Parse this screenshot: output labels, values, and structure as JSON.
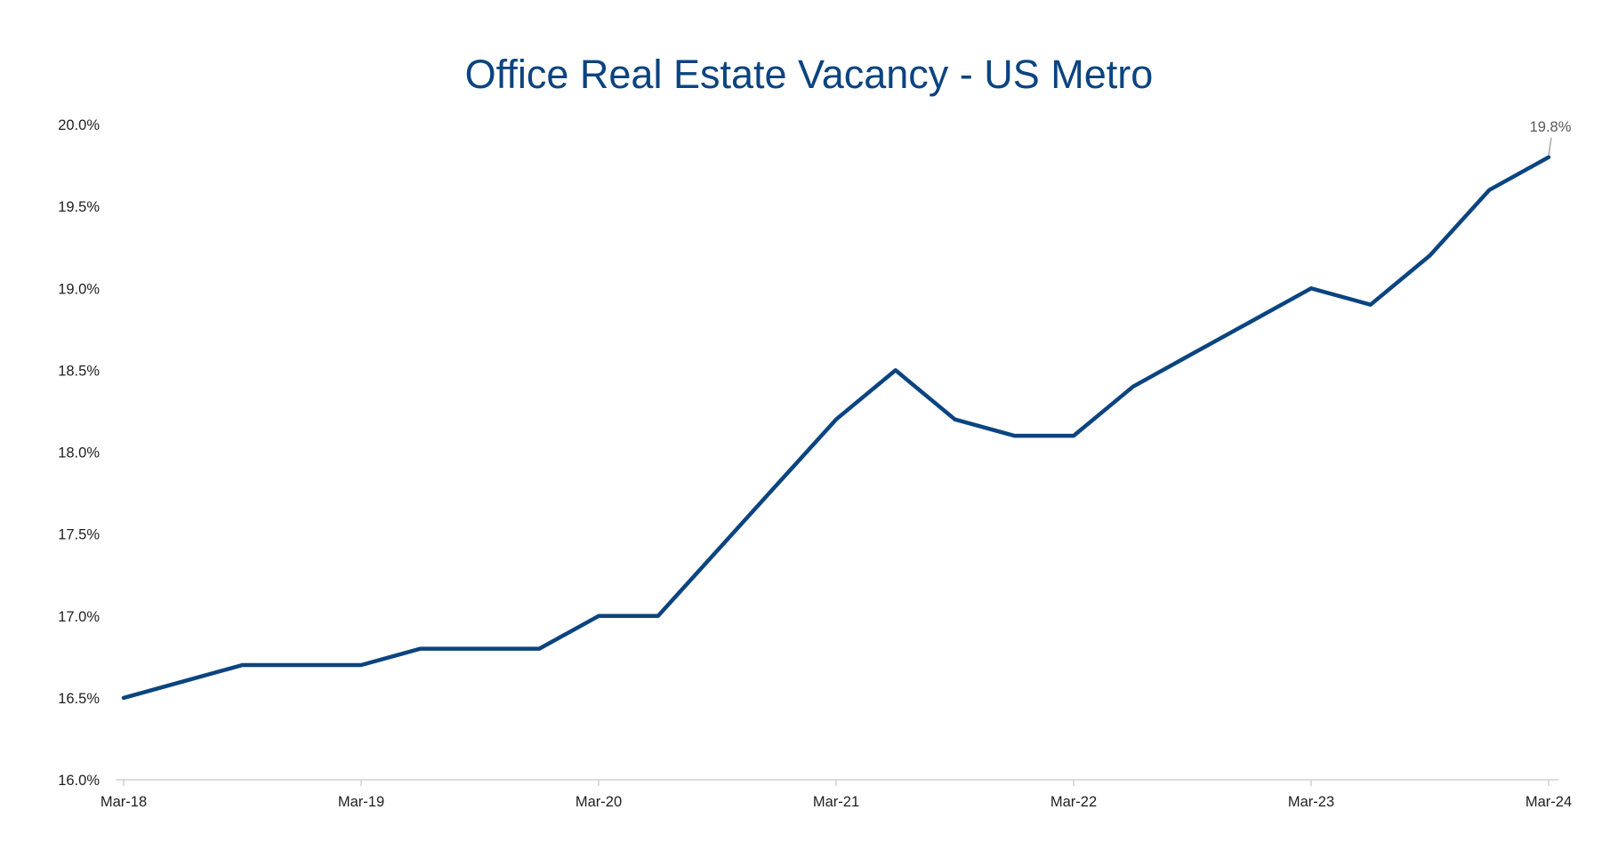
{
  "chart_data": {
    "type": "line",
    "title": "Office Real Estate Vacancy - US Metro",
    "xlabel": "",
    "ylabel": "",
    "x_tick_labels": [
      "Mar-18",
      "Mar-19",
      "Mar-20",
      "Mar-21",
      "Mar-22",
      "Mar-23",
      "Mar-24"
    ],
    "y_tick_labels": [
      "16.0%",
      "16.5%",
      "17.0%",
      "17.5%",
      "18.0%",
      "18.5%",
      "19.0%",
      "19.5%",
      "20.0%"
    ],
    "ylim": [
      16.0,
      20.0
    ],
    "y_unit": "%",
    "grid": false,
    "legend": "none",
    "line_color": "#0b4480",
    "title_color": "#0b4480",
    "series": [
      {
        "x": [
          "Mar-18",
          "Jun-18",
          "Sep-18",
          "Dec-18",
          "Mar-19",
          "Jun-19",
          "Sep-19",
          "Dec-19",
          "Mar-20",
          "Jun-20",
          "Sep-20",
          "Dec-20",
          "Mar-21",
          "Jun-21",
          "Sep-21",
          "Dec-21",
          "Mar-22",
          "Jun-22",
          "Sep-22",
          "Dec-22",
          "Mar-23",
          "Jun-23",
          "Sep-23",
          "Dec-23",
          "Mar-24"
        ],
        "values": [
          16.5,
          16.6,
          16.7,
          16.7,
          16.7,
          16.8,
          16.8,
          16.8,
          17.0,
          17.0,
          17.4,
          17.8,
          18.2,
          18.5,
          18.2,
          18.1,
          18.1,
          18.4,
          18.6,
          18.8,
          19.0,
          18.9,
          19.2,
          19.6,
          19.8
        ]
      }
    ],
    "annotations": [
      {
        "x": "Mar-24",
        "label": "19.8%"
      }
    ]
  }
}
